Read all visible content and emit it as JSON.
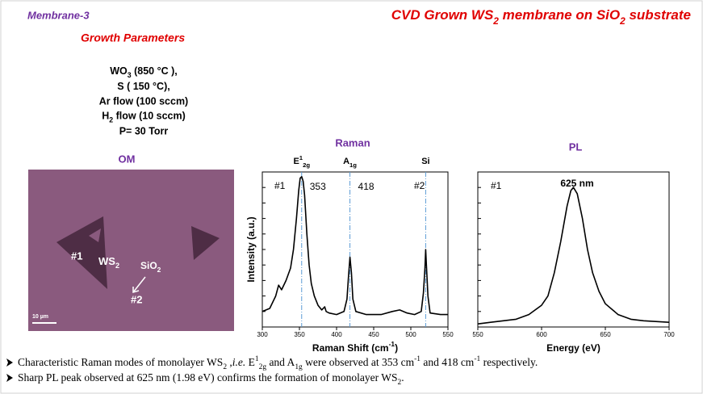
{
  "header": {
    "tag": "Membrane-3",
    "title": [
      "CVD Grown WS",
      {
        "sub": "2"
      },
      " membrane on SiO",
      {
        "sub": "2"
      },
      " substrate"
    ]
  },
  "growth": {
    "title": "Growth Parameters",
    "lines": [
      [
        "WO",
        {
          "sub": "3"
        },
        " (850 °C ),"
      ],
      "S ( 150 °C),",
      "Ar flow (100 sccm)",
      [
        "H",
        {
          "sub": "2"
        },
        " flow (10 sccm)"
      ],
      "P= 30 Torr"
    ]
  },
  "om": {
    "title": "OM",
    "labels": [
      "#1",
      [
        "WS",
        {
          "sub": "2"
        }
      ],
      [
        "SiO",
        {
          "sub": "2"
        }
      ],
      "#2",
      "10 µm"
    ]
  },
  "bullets": [
    [
      "Characteristic Raman modes of monolayer WS",
      {
        "sub": "2"
      },
      " ,",
      {
        "i": "i.e."
      },
      " E",
      {
        "sup": "1"
      },
      {
        "sub": "2g"
      },
      "  and A",
      {
        "sub": "1g"
      },
      " were observed at 353 cm",
      {
        "sup": "-1"
      },
      " and 418 cm",
      {
        "sup": "-1"
      },
      " respectively."
    ],
    [
      "Sharp PL peak observed at 625 nm (1.98 eV) confirms the formation of monolayer WS",
      {
        "sub": "2"
      },
      "."
    ]
  ],
  "chart_data": [
    {
      "type": "line",
      "title": "Raman",
      "color": "#000000",
      "x": [
        300,
        310,
        318,
        322,
        326,
        332,
        338,
        342,
        346,
        349,
        351,
        353,
        355,
        357,
        360,
        363,
        366,
        370,
        375,
        380,
        384,
        386,
        390,
        400,
        410,
        414,
        416,
        418,
        420,
        422,
        426,
        440,
        460,
        475,
        485,
        495,
        505,
        514,
        517,
        519,
        520,
        521,
        523,
        526,
        540,
        550
      ],
      "values": [
        0.1,
        0.12,
        0.2,
        0.27,
        0.24,
        0.3,
        0.38,
        0.5,
        0.7,
        0.88,
        0.96,
        0.97,
        0.94,
        0.85,
        0.6,
        0.4,
        0.28,
        0.2,
        0.14,
        0.11,
        0.13,
        0.1,
        0.09,
        0.08,
        0.1,
        0.18,
        0.32,
        0.45,
        0.35,
        0.18,
        0.1,
        0.08,
        0.08,
        0.1,
        0.11,
        0.09,
        0.08,
        0.1,
        0.22,
        0.38,
        0.5,
        0.4,
        0.2,
        0.09,
        0.08,
        0.08
      ],
      "xlim": [
        300,
        550
      ],
      "xticks": [
        300,
        350,
        400,
        450,
        500,
        550
      ],
      "ylim": [
        0,
        1
      ],
      "xlabel": [
        "Raman Shift (cm",
        {
          "sup": "-1"
        },
        ")"
      ],
      "ylabel": "Intensity (a.u.)",
      "peak_lines": [
        353,
        418,
        520
      ],
      "peak_line_color": "#5b9bd5",
      "peak_labels": [
        [
          "E",
          {
            "sup": "1"
          },
          {
            "sub": "2g"
          }
        ],
        [
          "A",
          {
            "sub": "1g"
          }
        ],
        "Si"
      ],
      "annotations": [
        "#1",
        "#2"
      ]
    },
    {
      "type": "line",
      "title": "PL",
      "color": "#000000",
      "x": [
        550,
        560,
        570,
        580,
        590,
        600,
        605,
        610,
        615,
        620,
        623,
        625,
        628,
        632,
        636,
        640,
        645,
        650,
        660,
        670,
        680,
        700
      ],
      "values": [
        0.02,
        0.03,
        0.04,
        0.05,
        0.08,
        0.14,
        0.2,
        0.35,
        0.55,
        0.78,
        0.88,
        0.9,
        0.86,
        0.7,
        0.5,
        0.35,
        0.23,
        0.15,
        0.08,
        0.05,
        0.04,
        0.03
      ],
      "xlim": [
        550,
        700
      ],
      "xticks": [
        550,
        600,
        650,
        700
      ],
      "ylim": [
        0,
        1
      ],
      "xlabel": "Energy (eV)",
      "annotations": [
        "#1",
        "625 nm"
      ]
    }
  ]
}
